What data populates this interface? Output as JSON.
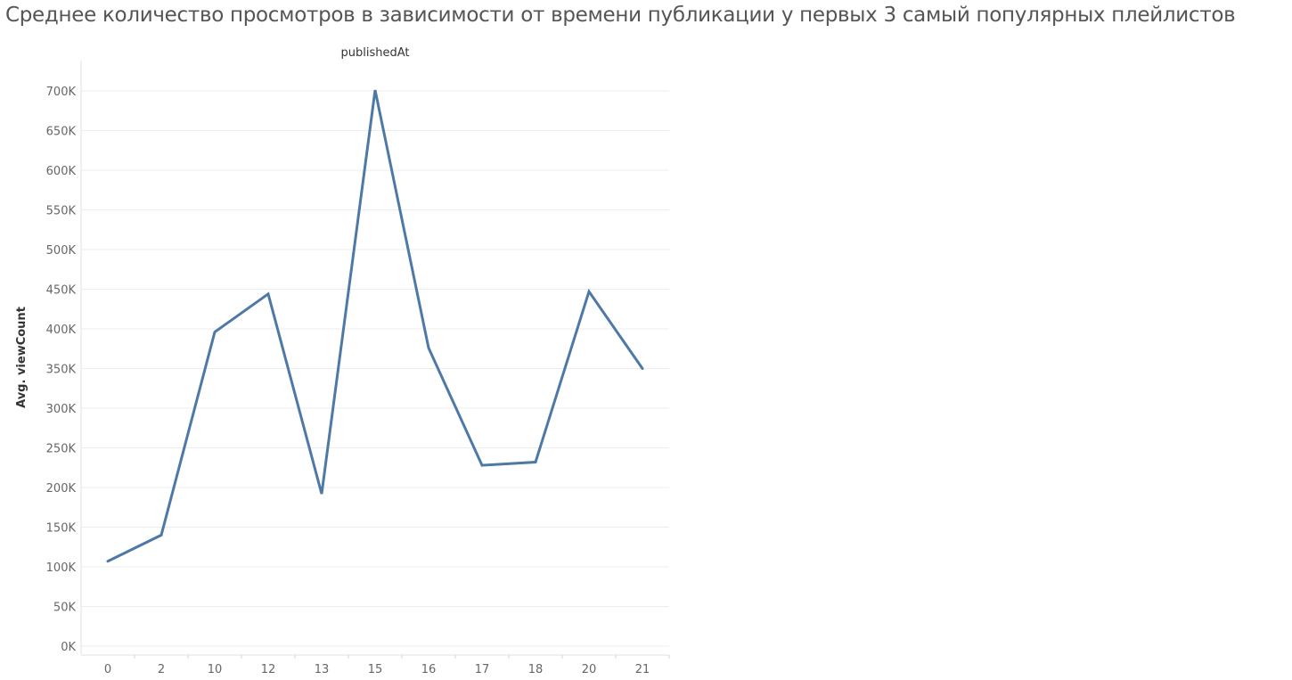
{
  "title": "Среднее количество просмотров в зависимости от времени публикации у  первых 3 самый популярных плейлистов",
  "chart_data": {
    "type": "line",
    "header": "publishedAt",
    "xlabel": "",
    "ylabel": "Avg. viewCount",
    "categories": [
      "0",
      "2",
      "10",
      "12",
      "13",
      "15",
      "16",
      "17",
      "18",
      "20",
      "21"
    ],
    "series": [
      {
        "values": [
          107000,
          140000,
          396000,
          444000,
          192000,
          701000,
          376000,
          228000,
          232000,
          447000,
          350000
        ]
      }
    ],
    "ylim": [
      0,
      730000
    ],
    "yticks": [
      0,
      50000,
      100000,
      150000,
      200000,
      250000,
      300000,
      350000,
      400000,
      450000,
      500000,
      550000,
      600000,
      650000,
      700000
    ],
    "ytick_labels": [
      "0K",
      "50K",
      "100K",
      "150K",
      "200K",
      "250K",
      "300K",
      "350K",
      "400K",
      "450K",
      "500K",
      "550K",
      "600K",
      "650K",
      "700K"
    ],
    "line_color": "#4e79a7",
    "grid": true
  }
}
